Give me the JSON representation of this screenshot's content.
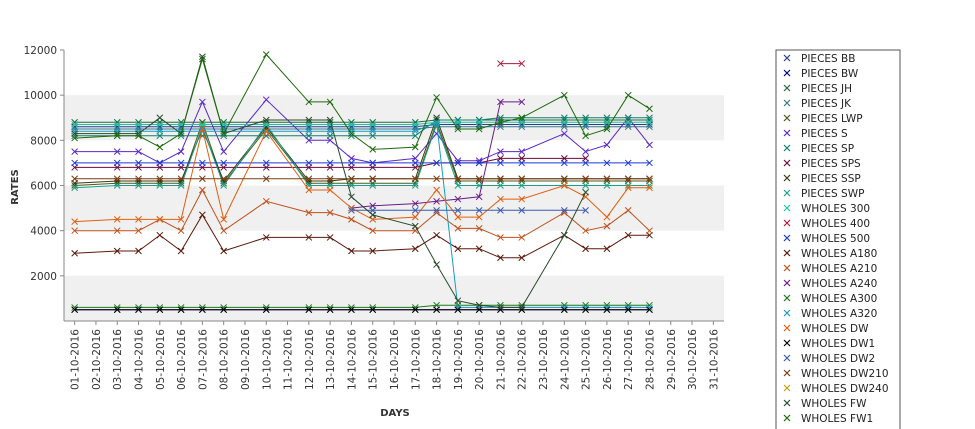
{
  "chart_data": {
    "type": "line",
    "title": "",
    "xlabel": "DAYS",
    "ylabel": "RATES",
    "ylim": [
      0,
      12000
    ],
    "yticks": [
      2000,
      4000,
      6000,
      8000,
      10000,
      12000
    ],
    "grid": "alternating horizontal bands",
    "legend_position": "right",
    "categories": [
      "01-10-2016",
      "02-10-2016",
      "03-10-2016",
      "04-10-2016",
      "05-10-2016",
      "06-10-2016",
      "07-10-2016",
      "08-10-2016",
      "09-10-2016",
      "10-10-2016",
      "11-10-2016",
      "12-10-2016",
      "13-10-2016",
      "14-10-2016",
      "15-10-2016",
      "16-10-2016",
      "17-10-2016",
      "18-10-2016",
      "19-10-2016",
      "20-10-2016",
      "21-10-2016",
      "22-10-2016",
      "23-10-2016",
      "24-10-2016",
      "25-10-2016",
      "26-10-2016",
      "27-10-2016",
      "28-10-2016",
      "29-10-2016",
      "30-10-2016",
      "31-10-2016"
    ],
    "series": [
      {
        "name": "PIECES BB",
        "color": "#2b3a8c",
        "values": [
          8600,
          null,
          8600,
          8600,
          8600,
          8600,
          8600,
          8600,
          null,
          8600,
          null,
          8600,
          8600,
          8600,
          8600,
          null,
          8600,
          8700,
          8700,
          8700,
          8700,
          8700,
          null,
          8700,
          8700,
          8700,
          8700,
          8700,
          null,
          null,
          null
        ]
      },
      {
        "name": "PIECES BW",
        "color": "#000080",
        "values": [
          500,
          null,
          500,
          500,
          500,
          500,
          500,
          500,
          null,
          500,
          null,
          500,
          500,
          500,
          500,
          null,
          500,
          500,
          500,
          500,
          500,
          500,
          null,
          500,
          500,
          500,
          500,
          500,
          null,
          null,
          null
        ]
      },
      {
        "name": "PIECES JH",
        "color": "#1f6b3a",
        "values": [
          8800,
          null,
          8800,
          8800,
          8800,
          8800,
          8800,
          8800,
          null,
          8800,
          null,
          8800,
          8800,
          8800,
          8800,
          null,
          8800,
          8900,
          8900,
          8900,
          8900,
          8900,
          null,
          8900,
          8900,
          8900,
          8900,
          8900,
          null,
          null,
          null
        ]
      },
      {
        "name": "PIECES JK",
        "color": "#3a7a8c",
        "values": [
          8500,
          null,
          8500,
          8500,
          8500,
          8500,
          8500,
          8500,
          null,
          8500,
          null,
          8500,
          8500,
          8500,
          8500,
          null,
          8500,
          8600,
          8600,
          8600,
          8600,
          8600,
          null,
          8600,
          8600,
          8600,
          8600,
          8600,
          null,
          null,
          null
        ]
      },
      {
        "name": "PIECES LWP",
        "color": "#4a5a1a",
        "values": [
          6000,
          null,
          6100,
          6100,
          6100,
          6100,
          8800,
          6100,
          null,
          8500,
          null,
          6100,
          6100,
          6100,
          6100,
          null,
          6100,
          8800,
          6200,
          6200,
          6200,
          6200,
          null,
          6200,
          6200,
          6200,
          6200,
          6200,
          null,
          null,
          null
        ]
      },
      {
        "name": "PIECES S",
        "color": "#5a28c8",
        "values": [
          7500,
          null,
          7500,
          7500,
          7000,
          7500,
          9700,
          7500,
          null,
          9800,
          null,
          8000,
          8000,
          7200,
          7000,
          null,
          7200,
          8300,
          7100,
          7100,
          7500,
          7500,
          null,
          8300,
          7500,
          7800,
          9000,
          7800,
          null,
          null,
          null
        ]
      },
      {
        "name": "PIECES SP",
        "color": "#10806a",
        "values": [
          8200,
          null,
          8200,
          8200,
          8200,
          8200,
          8200,
          8200,
          null,
          8200,
          null,
          8200,
          8200,
          8200,
          8200,
          null,
          8200,
          8900,
          8900,
          8900,
          9000,
          9000,
          null,
          9000,
          9000,
          9000,
          9000,
          9000,
          null,
          null,
          null
        ]
      },
      {
        "name": "PIECES SPS",
        "color": "#6a0a3a",
        "values": [
          6800,
          null,
          6800,
          6800,
          6800,
          6800,
          6800,
          6800,
          null,
          6800,
          null,
          6800,
          6800,
          6800,
          6800,
          null,
          6800,
          7000,
          7000,
          7000,
          7200,
          7200,
          null,
          7200,
          7200,
          null,
          null,
          null,
          null,
          null,
          null
        ]
      },
      {
        "name": "PIECES SSP",
        "color": "#3a3a10",
        "values": [
          6100,
          null,
          6200,
          6200,
          6200,
          6200,
          8500,
          6200,
          null,
          8600,
          null,
          6200,
          6200,
          6300,
          6300,
          null,
          6300,
          9000,
          6300,
          6300,
          6300,
          6300,
          null,
          6300,
          6300,
          6300,
          6300,
          6300,
          null,
          null,
          null
        ]
      },
      {
        "name": "PIECES SWP",
        "color": "#1aa08a",
        "values": [
          5900,
          null,
          6000,
          6000,
          6000,
          6000,
          8600,
          6000,
          null,
          8700,
          null,
          6000,
          6000,
          6000,
          6000,
          null,
          6000,
          8700,
          6000,
          6000,
          6000,
          6000,
          null,
          6000,
          6000,
          6000,
          6000,
          6000,
          null,
          null,
          null
        ]
      },
      {
        "name": "WHOLES 300",
        "color": "#20c0a8",
        "values": [
          8700,
          null,
          8700,
          8700,
          8700,
          8700,
          8700,
          8700,
          null,
          8700,
          null,
          8700,
          8700,
          8700,
          8700,
          null,
          8700,
          8800,
          8800,
          8800,
          8800,
          8800,
          null,
          8800,
          8800,
          8800,
          8800,
          8800,
          null,
          null,
          null
        ]
      },
      {
        "name": "WHOLES 400",
        "color": "#b0183a",
        "values": [
          null,
          null,
          null,
          null,
          null,
          null,
          null,
          null,
          null,
          null,
          null,
          null,
          null,
          null,
          null,
          null,
          null,
          null,
          null,
          null,
          11400,
          11400,
          null,
          null,
          null,
          null,
          null,
          null,
          null,
          null,
          null
        ]
      },
      {
        "name": "WHOLES 500",
        "color": "#1a3ad8",
        "values": [
          7000,
          null,
          7000,
          7000,
          7000,
          7000,
          7000,
          7000,
          null,
          7000,
          null,
          7000,
          7000,
          7000,
          7000,
          null,
          7000,
          7000,
          7000,
          7000,
          7000,
          7000,
          null,
          7000,
          7000,
          7000,
          7000,
          7000,
          null,
          null,
          null
        ]
      },
      {
        "name": "WHOLES A180",
        "color": "#5a1a0a",
        "values": [
          3000,
          null,
          3100,
          3100,
          3800,
          3100,
          4700,
          3100,
          null,
          3700,
          null,
          3700,
          3700,
          3100,
          3100,
          null,
          3200,
          3800,
          3200,
          3200,
          2800,
          2800,
          null,
          3800,
          3200,
          3200,
          3800,
          3800,
          null,
          null,
          null
        ]
      },
      {
        "name": "WHOLES A210",
        "color": "#c0501a",
        "values": [
          4000,
          null,
          4000,
          4000,
          4500,
          4000,
          5800,
          4000,
          null,
          5300,
          null,
          4800,
          4800,
          4500,
          4000,
          null,
          4000,
          4800,
          4100,
          4100,
          3700,
          3700,
          null,
          4800,
          4000,
          4200,
          4900,
          4000,
          null,
          null,
          null
        ]
      },
      {
        "name": "WHOLES A240",
        "color": "#6a1a8a",
        "values": [
          null,
          null,
          null,
          null,
          null,
          null,
          null,
          null,
          null,
          null,
          null,
          null,
          null,
          5000,
          5100,
          null,
          5200,
          5300,
          5400,
          5500,
          9700,
          9700,
          null,
          null,
          null,
          null,
          null,
          null,
          null,
          null,
          null
        ]
      },
      {
        "name": "WHOLES A300",
        "color": "#1a7a1a",
        "values": [
          600,
          null,
          600,
          600,
          600,
          600,
          600,
          600,
          null,
          600,
          null,
          600,
          600,
          600,
          600,
          null,
          600,
          700,
          700,
          700,
          700,
          700,
          null,
          700,
          700,
          700,
          700,
          700,
          null,
          null,
          null
        ]
      },
      {
        "name": "WHOLES A320",
        "color": "#1a9ac0",
        "values": [
          8400,
          null,
          8400,
          8400,
          8400,
          8400,
          8400,
          8400,
          null,
          8400,
          null,
          8400,
          8400,
          8400,
          8400,
          null,
          8400,
          8800,
          600,
          600,
          600,
          600,
          null,
          600,
          600,
          600,
          600,
          600,
          null,
          null,
          null
        ]
      },
      {
        "name": "WHOLES DW",
        "color": "#e06010",
        "values": [
          4400,
          null,
          4500,
          4500,
          4500,
          4500,
          8500,
          4500,
          null,
          8400,
          null,
          5800,
          5800,
          5000,
          4500,
          null,
          4600,
          5800,
          4600,
          4600,
          5400,
          5400,
          null,
          6000,
          5500,
          4600,
          5900,
          5900,
          null,
          null,
          null
        ]
      },
      {
        "name": "WHOLES DW1",
        "color": "#000000",
        "values": [
          500,
          null,
          500,
          500,
          500,
          500,
          500,
          500,
          null,
          500,
          null,
          500,
          500,
          500,
          500,
          null,
          500,
          500,
          500,
          500,
          500,
          500,
          null,
          500,
          500,
          500,
          500,
          500,
          null,
          null,
          null
        ]
      },
      {
        "name": "WHOLES DW2",
        "color": "#3a5ab0",
        "values": [
          null,
          null,
          null,
          null,
          null,
          null,
          null,
          null,
          null,
          null,
          null,
          null,
          null,
          4900,
          4900,
          null,
          4900,
          4900,
          4900,
          4900,
          4900,
          4900,
          null,
          4900,
          4900,
          null,
          null,
          null,
          null,
          null,
          null
        ]
      },
      {
        "name": "WHOLES DW210",
        "color": "#7a3a10",
        "values": [
          6300,
          null,
          6300,
          6300,
          6300,
          6300,
          6300,
          6300,
          null,
          6300,
          null,
          6300,
          6300,
          6300,
          6300,
          null,
          6300,
          6300,
          6300,
          6300,
          6300,
          6300,
          null,
          6300,
          6300,
          6300,
          6300,
          6300,
          null,
          null,
          null
        ]
      },
      {
        "name": "WHOLES DW240",
        "color": "#c0a010",
        "values": [
          null,
          null,
          null,
          null,
          null,
          null,
          null,
          null,
          null,
          null,
          null,
          null,
          null,
          null,
          null,
          null,
          null,
          null,
          null,
          null,
          null,
          null,
          null,
          null,
          null,
          null,
          null,
          null,
          null,
          null,
          null
        ]
      },
      {
        "name": "WHOLES FW",
        "color": "#2a4a2a",
        "values": [
          8300,
          null,
          8300,
          8300,
          9000,
          8300,
          11700,
          8300,
          null,
          8900,
          null,
          8900,
          8900,
          5500,
          4700,
          null,
          4200,
          2500,
          900,
          700,
          600,
          600,
          null,
          3800,
          5700,
          null,
          null,
          null,
          null,
          null,
          null
        ]
      },
      {
        "name": "WHOLES FW1",
        "color": "#1a6a0a",
        "values": [
          8100,
          null,
          8200,
          8200,
          7700,
          8300,
          11600,
          8300,
          null,
          11800,
          null,
          9700,
          9700,
          8300,
          7600,
          null,
          7700,
          9900,
          8500,
          8500,
          8800,
          9000,
          null,
          10000,
          8200,
          8500,
          10000,
          9400,
          null,
          null,
          null
        ]
      }
    ]
  }
}
